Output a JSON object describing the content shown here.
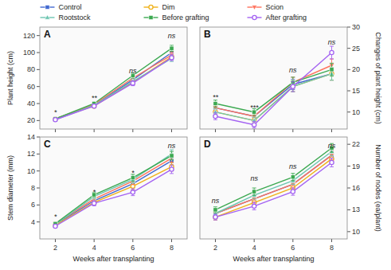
{
  "chart_data": [
    {
      "type": "line",
      "title": "A",
      "ylabel": "Plant height (cm)",
      "x": [
        2,
        4,
        6,
        8
      ],
      "xlim": [
        1.2,
        8.8
      ],
      "xticks": [
        2,
        4,
        6,
        8
      ],
      "ylim": [
        10,
        130
      ],
      "yticks": [
        20,
        40,
        60,
        80,
        100,
        120
      ],
      "grid": false,
      "tick_labels": "y",
      "legend": "top",
      "series": [
        {
          "name": "Control",
          "marker": "square",
          "line_style": "solid",
          "values": [
            22,
            38,
            68,
            100
          ],
          "errors": [
            1.0,
            2.0,
            3.0,
            3.5
          ]
        },
        {
          "name": "Dim",
          "marker": "circle-open",
          "line_style": "solid",
          "values": [
            22,
            37,
            65,
            95
          ],
          "errors": [
            1.0,
            2.0,
            3.0,
            3.5
          ]
        },
        {
          "name": "Scion",
          "marker": "triangle-down",
          "line_style": "solid",
          "values": [
            22,
            39,
            70,
            97
          ],
          "errors": [
            1.0,
            2.0,
            3.0,
            3.5
          ]
        },
        {
          "name": "Rootstock",
          "marker": "triangle-up",
          "line_style": "solid",
          "values": [
            21,
            38,
            66,
            93
          ],
          "errors": [
            1.0,
            2.0,
            3.0,
            3.5
          ]
        },
        {
          "name": "Before grafting",
          "marker": "square",
          "line_style": "solid",
          "values": [
            22,
            40,
            73,
            105
          ],
          "errors": [
            1.0,
            2.0,
            3.0,
            3.5
          ]
        },
        {
          "name": "After grafting",
          "marker": "circle-open",
          "line_style": "solid",
          "values": [
            21,
            37,
            64,
            94
          ],
          "errors": [
            1.0,
            2.0,
            3.0,
            3.5
          ]
        }
      ],
      "annotations": [
        {
          "text": "*",
          "x": 2,
          "y": 25.6
        },
        {
          "text": "**",
          "x": 4,
          "y": 42.4
        },
        {
          "text": "ns",
          "x": 6,
          "y": 74.8
        },
        {
          "text": "ns",
          "x": 8,
          "y": 115.6
        }
      ]
    },
    {
      "type": "line",
      "title": "B",
      "ylabel": "Changes of plant height (cm)",
      "x": [
        2,
        4,
        6,
        8
      ],
      "xlim": [
        1.2,
        8.8
      ],
      "xticks": [
        2,
        4,
        6,
        8
      ],
      "ylim": [
        6,
        30
      ],
      "yticks": [
        10,
        15,
        20,
        25,
        30
      ],
      "grid": false,
      "tick_labels": "y",
      "series": [
        {
          "name": "Control",
          "marker": "square",
          "line_style": "solid",
          "values": [
            11.0,
            9.0,
            16.5,
            19.0
          ],
          "errors": [
            0.8,
            0.8,
            1.2,
            1.5
          ]
        },
        {
          "name": "Dim",
          "marker": "circle-open",
          "line_style": "solid",
          "values": [
            10.0,
            8.0,
            16.0,
            19.0
          ],
          "errors": [
            0.8,
            0.8,
            1.2,
            1.5
          ]
        },
        {
          "name": "Scion",
          "marker": "triangle-down",
          "line_style": "solid",
          "values": [
            11.0,
            9.0,
            17.0,
            21.0
          ],
          "errors": [
            0.8,
            0.8,
            1.2,
            1.5
          ]
        },
        {
          "name": "Rootstock",
          "marker": "triangle-up",
          "line_style": "solid",
          "values": [
            10.0,
            8.0,
            16.0,
            19.0
          ],
          "errors": [
            0.8,
            0.8,
            1.2,
            1.5
          ]
        },
        {
          "name": "Before grafting",
          "marker": "square",
          "line_style": "solid",
          "values": [
            12.0,
            10.0,
            17.0,
            20.0
          ],
          "errors": [
            0.8,
            0.8,
            1.2,
            1.5
          ]
        },
        {
          "name": "After grafting",
          "marker": "circle-open",
          "line_style": "solid",
          "values": [
            9.0,
            7.0,
            16.0,
            24.0
          ],
          "errors": [
            0.8,
            0.8,
            1.2,
            1.5
          ]
        }
      ],
      "annotations": [
        {
          "text": "**",
          "x": 2,
          "y": 12.72
        },
        {
          "text": "***",
          "x": 4,
          "y": 10.32
        },
        {
          "text": "ns",
          "x": 6,
          "y": 19.2
        },
        {
          "text": "ns",
          "x": 8,
          "y": 25.68
        }
      ]
    },
    {
      "type": "line",
      "title": "C",
      "ylabel": "Stem diameter (mm)",
      "xlabel": "Weeks after transplanting",
      "x": [
        2,
        4,
        6,
        8
      ],
      "xlim": [
        1.2,
        8.8
      ],
      "xticks": [
        2,
        4,
        6,
        8
      ],
      "ylim": [
        2,
        14
      ],
      "yticks": [
        4,
        6,
        8,
        10,
        12,
        14
      ],
      "grid": false,
      "tick_labels": true,
      "series": [
        {
          "name": "Control",
          "marker": "square",
          "line_style": "solid",
          "values": [
            3.7,
            6.5,
            8.5,
            11.2
          ],
          "errors": [
            0.15,
            0.3,
            0.4,
            0.5
          ]
        },
        {
          "name": "Dim",
          "marker": "circle-open",
          "line_style": "solid",
          "values": [
            3.6,
            6.3,
            8.2,
            10.5
          ],
          "errors": [
            0.15,
            0.3,
            0.4,
            0.5
          ]
        },
        {
          "name": "Scion",
          "marker": "triangle-down",
          "line_style": "solid",
          "values": [
            3.8,
            6.7,
            8.8,
            11.5
          ],
          "errors": [
            0.15,
            0.3,
            0.4,
            0.5
          ]
        },
        {
          "name": "Rootstock",
          "marker": "triangle-up",
          "line_style": "solid",
          "values": [
            3.7,
            7.0,
            9.0,
            12.0
          ],
          "errors": [
            0.15,
            0.3,
            0.4,
            0.5
          ]
        },
        {
          "name": "Before grafting",
          "marker": "square",
          "line_style": "solid",
          "values": [
            3.8,
            7.2,
            9.2,
            11.8
          ],
          "errors": [
            0.15,
            0.3,
            0.4,
            0.5
          ]
        },
        {
          "name": "After grafting",
          "marker": "circle-open",
          "line_style": "solid",
          "values": [
            3.5,
            6.2,
            7.5,
            10.2
          ],
          "errors": [
            0.15,
            0.3,
            0.4,
            0.5
          ]
        }
      ],
      "annotations": [
        {
          "text": "*",
          "x": 2,
          "y": 4.28
        },
        {
          "text": "*",
          "x": 4,
          "y": 7.16
        },
        {
          "text": "*",
          "x": 6,
          "y": 9.44
        },
        {
          "text": "ns",
          "x": 8,
          "y": 12.56
        }
      ]
    },
    {
      "type": "line",
      "title": "D",
      "ylabel": "Number of nodes (ea/plant)",
      "xlabel": "Weeks after transplanting",
      "x": [
        2,
        4,
        6,
        8
      ],
      "xlim": [
        1.2,
        8.8
      ],
      "xticks": [
        2,
        4,
        6,
        8
      ],
      "ylim": [
        9,
        23
      ],
      "yticks": [
        10,
        13,
        16,
        19,
        22
      ],
      "grid": false,
      "tick_labels": true,
      "series": [
        {
          "name": "Control",
          "marker": "square",
          "line_style": "solid",
          "values": [
            12.5,
            14.5,
            16.5,
            20.5
          ],
          "errors": [
            0.4,
            0.5,
            0.5,
            0.6
          ]
        },
        {
          "name": "Dim",
          "marker": "circle-open",
          "line_style": "solid",
          "values": [
            12.0,
            14.0,
            16.0,
            20.0
          ],
          "errors": [
            0.4,
            0.5,
            0.5,
            0.6
          ]
        },
        {
          "name": "Scion",
          "marker": "triangle-down",
          "line_style": "solid",
          "values": [
            12.5,
            14.5,
            16.5,
            20.5
          ],
          "errors": [
            0.4,
            0.5,
            0.5,
            0.6
          ]
        },
        {
          "name": "Rootstock",
          "marker": "triangle-up",
          "line_style": "solid",
          "values": [
            12.5,
            15.0,
            17.0,
            21.0
          ],
          "errors": [
            0.4,
            0.5,
            0.5,
            0.6
          ]
        },
        {
          "name": "Before grafting",
          "marker": "square",
          "line_style": "solid",
          "values": [
            13.0,
            15.5,
            17.5,
            21.5
          ],
          "errors": [
            0.4,
            0.5,
            0.5,
            0.6
          ]
        },
        {
          "name": "After grafting",
          "marker": "circle-open",
          "line_style": "solid",
          "values": [
            12.0,
            13.5,
            15.5,
            19.5
          ],
          "errors": [
            0.4,
            0.5,
            0.5,
            0.6
          ]
        }
      ],
      "annotations": [
        {
          "text": "ns",
          "x": 2,
          "y": 13.76
        },
        {
          "text": "ns",
          "x": 4,
          "y": 16.84
        },
        {
          "text": "ns",
          "x": 6,
          "y": 18.52
        },
        {
          "text": "ns",
          "x": 8,
          "y": 21.32
        }
      ]
    }
  ]
}
